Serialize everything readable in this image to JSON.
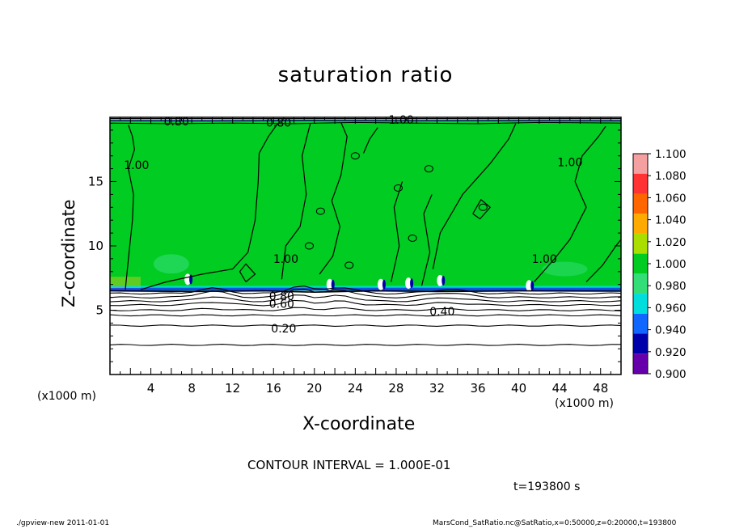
{
  "chart_data": {
    "type": "heatmap",
    "title": "saturation ratio",
    "xlabel": "X-coordinate",
    "ylabel": "Z-coordinate",
    "x_unit": "(x1000 m)",
    "xlim": [
      0,
      50
    ],
    "ylim": [
      0,
      20
    ],
    "x_ticks": [
      4,
      8,
      12,
      16,
      20,
      24,
      28,
      32,
      36,
      40,
      44,
      48
    ],
    "y_ticks": [
      5,
      10,
      15
    ],
    "colorbar": {
      "levels": [
        "1.100",
        "1.080",
        "1.060",
        "1.040",
        "1.020",
        "1.000",
        "0.980",
        "0.960",
        "0.940",
        "0.920",
        "0.900"
      ],
      "colors": [
        "#f5a0a0",
        "#ff3333",
        "#ff6600",
        "#ffaa00",
        "#aadd00",
        "#00cc22",
        "#33dd77",
        "#00dddd",
        "#1166ff",
        "#0000aa",
        "#6600aa"
      ]
    },
    "contour_labels": [
      {
        "text": "0.80",
        "x": 6.5,
        "z": 19.7
      },
      {
        "text": "0.80",
        "x": 16.5,
        "z": 19.6
      },
      {
        "text": "1.00",
        "x": 28.5,
        "z": 19.8
      },
      {
        "text": "1.00",
        "x": 2.6,
        "z": 16.3
      },
      {
        "text": "1.00",
        "x": 45,
        "z": 16.5
      },
      {
        "text": "1.00",
        "x": 17.2,
        "z": 9.0
      },
      {
        "text": "1.00",
        "x": 42.5,
        "z": 9.0
      },
      {
        "text": "0.80",
        "x": 16.8,
        "z": 6.1
      },
      {
        "text": "0.60",
        "x": 16.8,
        "z": 5.5
      },
      {
        "text": "0.40",
        "x": 32.5,
        "z": 4.9
      },
      {
        "text": "0.20",
        "x": 17.0,
        "z": 3.6
      }
    ],
    "contour_interval": "CONTOUR INTERVAL = 1.000E-01",
    "time": "t=193800 s"
  },
  "footer": {
    "left": "./gpview-new  2011-01-01",
    "right": "MarsCond_SatRatio.nc@SatRatio,x=0:50000,z=0:20000,t=193800"
  },
  "colors": {
    "saturated": "#00cc22",
    "subsaturated": "#ffffff",
    "boundary": "#1144ff"
  }
}
